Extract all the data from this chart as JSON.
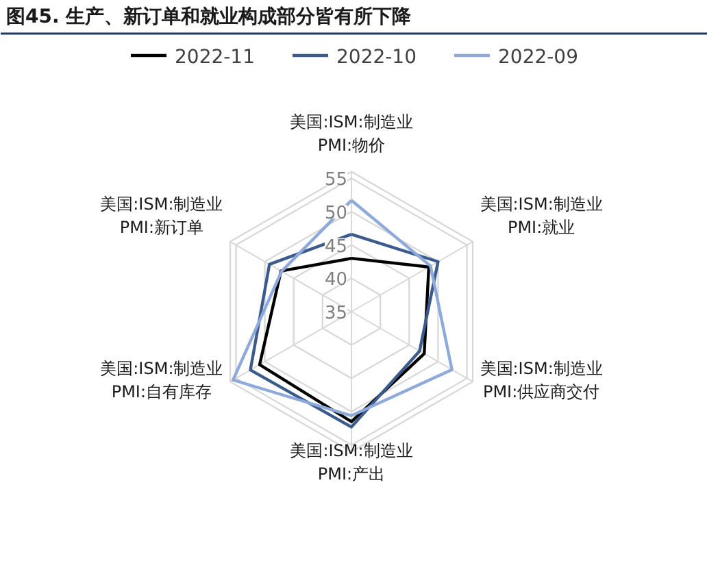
{
  "chart_data": {
    "type": "radar",
    "title": "图45. 生产、新订单和就业构成部分皆有所下降",
    "categories": [
      "美国:ISM:制造业\nPMI:物价",
      "美国:ISM:制造业\nPMI:就业",
      "美国:ISM:制造业\nPMI:供应商交付",
      "美国:ISM:制造业\nPMI:产出",
      "美国:ISM:制造业\nPMI:自有库存",
      "美国:ISM:制造业\nPMI:新订单"
    ],
    "series": [
      {
        "name": "2022-11",
        "color": "#000000",
        "values": [
          43.0,
          48.4,
          47.6,
          51.5,
          50.9,
          47.2
        ]
      },
      {
        "name": "2022-10",
        "color": "#3b5b8c",
        "values": [
          46.6,
          50.0,
          46.8,
          52.3,
          52.5,
          49.2
        ]
      },
      {
        "name": "2022-09",
        "color": "#8eaadb",
        "values": [
          51.7,
          48.7,
          52.4,
          50.6,
          55.5,
          47.1
        ]
      }
    ],
    "ylim": [
      35,
      56
    ],
    "yticks": [
      35,
      40,
      45,
      50,
      55
    ],
    "grid": true,
    "legend": "top"
  }
}
